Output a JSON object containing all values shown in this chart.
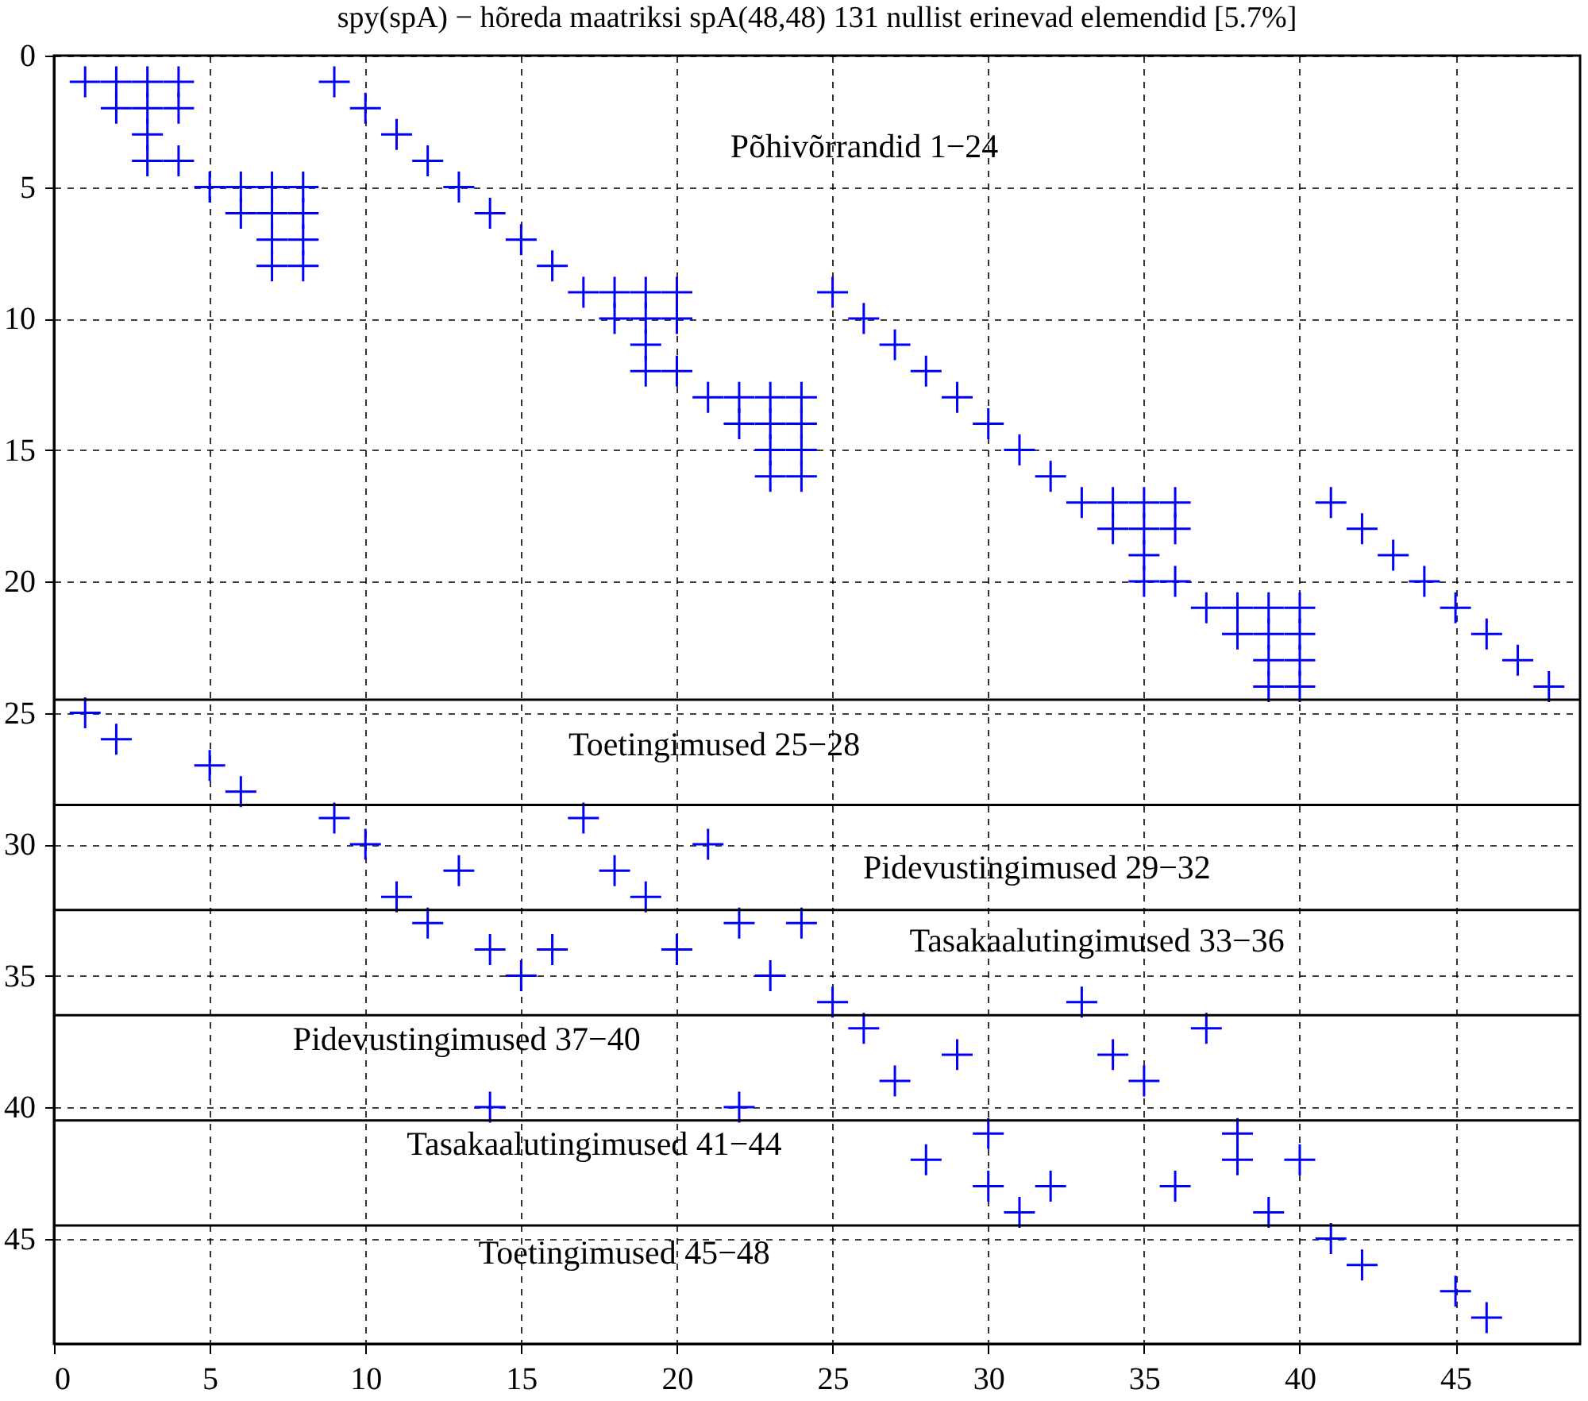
{
  "chart_data": {
    "type": "scatter",
    "title": "spy(spA) − hõreda maatriksi spA(48,48) 131  nullist erinevad elemendid [5.7%]",
    "xlim": [
      0,
      49
    ],
    "ylim": [
      49,
      0
    ],
    "xticks": [
      0,
      5,
      10,
      15,
      20,
      25,
      30,
      35,
      40,
      45
    ],
    "yticks": [
      0,
      5,
      10,
      15,
      20,
      25,
      30,
      35,
      40,
      45
    ],
    "grid": true,
    "marker": "cross",
    "series": [
      {
        "color": "#0000ff",
        "x": [
          1,
          2,
          3,
          4,
          9,
          2,
          3,
          4,
          10,
          3,
          11,
          3,
          4,
          12,
          5,
          6,
          7,
          8,
          13,
          6,
          7,
          8,
          14,
          7,
          8,
          15,
          7,
          8,
          16,
          17,
          18,
          19,
          20,
          25,
          18,
          19,
          20,
          26,
          19,
          27,
          19,
          20,
          28,
          21,
          22,
          23,
          24,
          29,
          22,
          23,
          24,
          30,
          23,
          24,
          31,
          23,
          24,
          32,
          33,
          34,
          35,
          36,
          41,
          34,
          35,
          36,
          42,
          35,
          43,
          35,
          36,
          44,
          37,
          38,
          39,
          40,
          45,
          38,
          39,
          40,
          46,
          39,
          40,
          47,
          39,
          40,
          48,
          1,
          2,
          5,
          6,
          9,
          17,
          10,
          21,
          13,
          18,
          11,
          19,
          12,
          22,
          24,
          14,
          16,
          20,
          15,
          23,
          25,
          33,
          26,
          37,
          29,
          34,
          27,
          35,
          14,
          22,
          30,
          38,
          28,
          38,
          40,
          30,
          32,
          36,
          31,
          39,
          41,
          42,
          45,
          46
        ],
        "values": [
          1,
          1,
          1,
          1,
          1,
          2,
          2,
          2,
          2,
          3,
          3,
          4,
          4,
          4,
          5,
          5,
          5,
          5,
          5,
          6,
          6,
          6,
          6,
          7,
          7,
          7,
          8,
          8,
          8,
          9,
          9,
          9,
          9,
          9,
          10,
          10,
          10,
          10,
          11,
          11,
          12,
          12,
          12,
          13,
          13,
          13,
          13,
          13,
          14,
          14,
          14,
          14,
          15,
          15,
          15,
          16,
          16,
          16,
          17,
          17,
          17,
          17,
          17,
          18,
          18,
          18,
          18,
          19,
          19,
          20,
          20,
          20,
          21,
          21,
          21,
          21,
          21,
          22,
          22,
          22,
          22,
          23,
          23,
          23,
          24,
          24,
          24,
          25,
          26,
          27,
          28,
          29,
          29,
          30,
          30,
          31,
          31,
          32,
          32,
          33,
          33,
          33,
          34,
          34,
          34,
          35,
          35,
          36,
          36,
          37,
          37,
          38,
          38,
          39,
          39,
          40,
          40,
          41,
          41,
          42,
          42,
          42,
          43,
          43,
          43,
          44,
          44,
          45,
          46,
          47,
          48
        ]
      }
    ],
    "ref_lines": [
      {
        "axis": "y",
        "value": 24.5,
        "color": "#000000",
        "line_style": "solid"
      },
      {
        "axis": "y",
        "value": 28.5,
        "color": "#000000",
        "line_style": "solid"
      },
      {
        "axis": "y",
        "value": 32.5,
        "color": "#000000",
        "line_style": "solid"
      },
      {
        "axis": "y",
        "value": 36.5,
        "color": "#000000",
        "line_style": "solid"
      },
      {
        "axis": "y",
        "value": 40.5,
        "color": "#000000",
        "line_style": "solid"
      },
      {
        "axis": "y",
        "value": 44.5,
        "color": "#000000",
        "line_style": "solid"
      }
    ],
    "annotations": [
      "Põhivõrrandid 1−24",
      "Toetingimused 25−28",
      "Pidevustingimused 29−32",
      "Tasakaalutingimused 33−36",
      "Pidevustingimused 37−40",
      "Tasakaalutingimused 41−44",
      "Toetingimused 45−48"
    ]
  }
}
